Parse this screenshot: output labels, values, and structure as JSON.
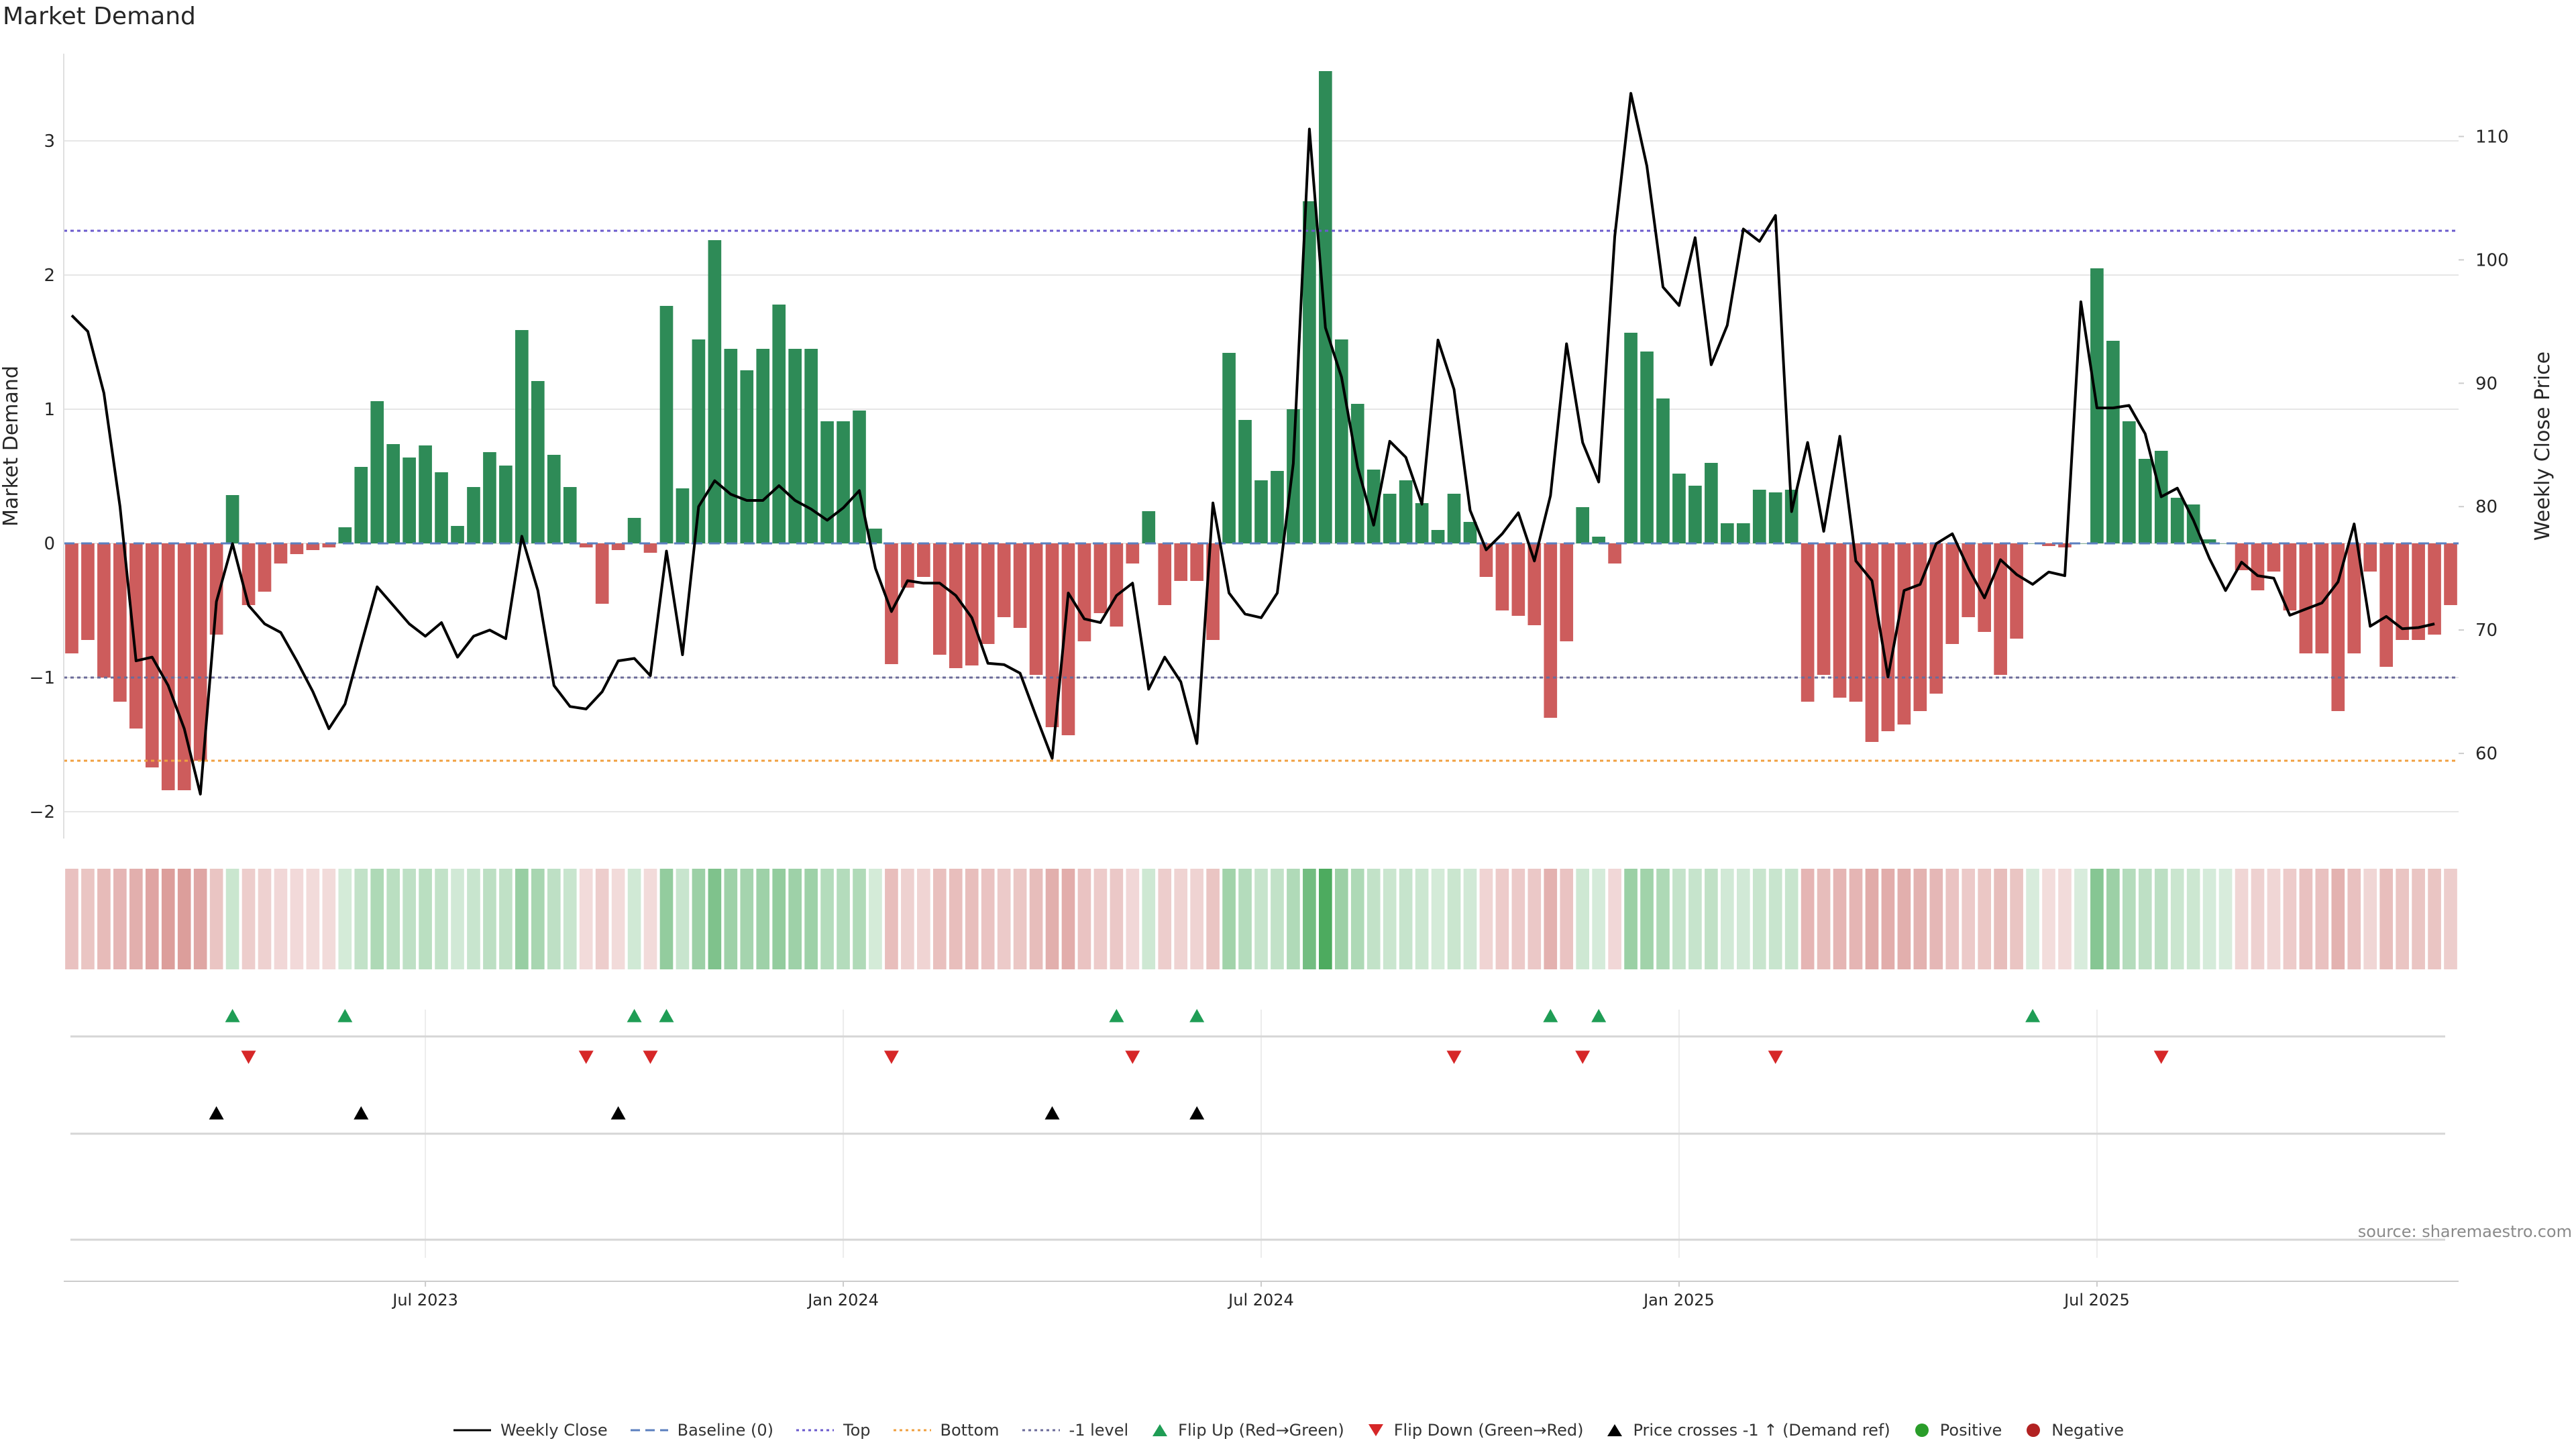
{
  "title": "Market Demand",
  "source": "source: sharemaestro.com",
  "colors": {
    "positive": "#2e8b57",
    "negative": "#cd5c5c",
    "price": "#000000",
    "baseline": "#5b7fbf",
    "top": "#6a5acd",
    "bottom": "#f0a040",
    "minus1": "#6b6b9a",
    "flip_up": "#1f9d55",
    "flip_down": "#d62728",
    "cross": "#000000",
    "legend_positive": "#2a9d2a",
    "legend_negative": "#b22222"
  },
  "chart_data": {
    "type": "bar+line",
    "title": "Market Demand",
    "ylabel_left": "Market Demand",
    "ylabel_right": "Weekly Close Price",
    "left_ticks": [
      3,
      2,
      1,
      0,
      -1,
      -2
    ],
    "left_tick_labels": [
      "3",
      "2",
      "1",
      "0",
      "−1",
      "−2"
    ],
    "ylim_left": [
      -2.2,
      3.75
    ],
    "right_ticks": [
      110,
      100,
      90,
      80,
      70,
      60
    ],
    "right_tick_labels": [
      "110",
      "100",
      "90",
      "80",
      "70",
      "60"
    ],
    "ylim_right": [
      53.1,
      117.8
    ],
    "top_level": 2.33,
    "bottom_level": -1.62,
    "minus1_level": -1.0,
    "x_tick_labels": [
      "Jul 2023",
      "Jan 2024",
      "Jul 2024",
      "Jan 2025",
      "Jul 2025"
    ],
    "x_tick_index": [
      22,
      48,
      74,
      100,
      126
    ],
    "demand": [
      -0.82,
      -0.72,
      -1.0,
      -1.18,
      -1.38,
      -1.67,
      -1.84,
      -1.84,
      -1.62,
      -0.68,
      0.36,
      -0.46,
      -0.36,
      -0.15,
      -0.08,
      -0.05,
      -0.03,
      0.12,
      0.57,
      1.06,
      0.74,
      0.64,
      0.73,
      0.53,
      0.13,
      0.42,
      0.68,
      0.58,
      1.59,
      1.21,
      0.66,
      0.42,
      -0.03,
      -0.45,
      -0.05,
      0.19,
      -0.07,
      1.77,
      0.41,
      1.52,
      2.26,
      1.45,
      1.29,
      1.45,
      1.78,
      1.45,
      1.45,
      0.91,
      0.91,
      0.99,
      0.11,
      -0.9,
      -0.33,
      -0.25,
      -0.83,
      -0.93,
      -0.91,
      -0.75,
      -0.55,
      -0.63,
      -0.98,
      -1.37,
      -1.43,
      -0.73,
      -0.52,
      -0.62,
      -0.15,
      0.24,
      -0.46,
      -0.28,
      -0.28,
      -0.72,
      1.42,
      0.92,
      0.47,
      0.54,
      1.0,
      2.55,
      3.52,
      1.52,
      1.04,
      0.55,
      0.37,
      0.47,
      0.3,
      0.1,
      0.37,
      0.16,
      -0.25,
      -0.5,
      -0.54,
      -0.61,
      -1.3,
      -0.73,
      0.27,
      0.05,
      -0.15,
      1.57,
      1.43,
      1.08,
      0.52,
      0.43,
      0.6,
      0.15,
      0.15,
      0.4,
      0.38,
      0.4,
      -1.18,
      -0.98,
      -1.15,
      -1.18,
      -1.48,
      -1.4,
      -1.35,
      -1.25,
      -1.12,
      -0.75,
      -0.55,
      -0.66,
      -0.98,
      -0.71,
      0.0,
      -0.02,
      -0.03,
      0.0,
      2.05,
      1.51,
      0.91,
      0.63,
      0.69,
      0.34,
      0.29,
      0.03,
      0.0,
      -0.2,
      -0.35,
      -0.21,
      -0.5,
      -0.82,
      -0.82,
      -1.25,
      -0.82,
      -0.21,
      -0.92,
      -0.72,
      -0.72,
      -0.68,
      -0.46
    ],
    "close": [
      95.5,
      94.2,
      89.2,
      80.0,
      67.5,
      67.8,
      65.5,
      62.0,
      56.7,
      72.3,
      77.0,
      72.0,
      70.5,
      69.8,
      67.5,
      65.0,
      62.0,
      64.0,
      68.8,
      73.5,
      72.0,
      70.5,
      69.5,
      70.6,
      67.8,
      69.5,
      70.0,
      69.3,
      77.6,
      73.2,
      65.5,
      63.8,
      63.6,
      65.0,
      67.5,
      67.7,
      66.3,
      76.4,
      68.0,
      80.0,
      82.1,
      81.0,
      80.5,
      80.5,
      81.7,
      80.5,
      79.8,
      78.9,
      79.9,
      81.3,
      75.0,
      71.5,
      74.0,
      73.8,
      73.8,
      72.8,
      71.0,
      67.3,
      67.2,
      66.5,
      63.0,
      59.6,
      73.0,
      70.9,
      70.6,
      72.8,
      73.8,
      65.2,
      67.8,
      65.8,
      60.8,
      80.3,
      73.0,
      71.3,
      71.0,
      73.0,
      83.5,
      110.6,
      94.5,
      90.5,
      83.2,
      78.5,
      85.3,
      84.0,
      80.2,
      93.5,
      89.5,
      79.7,
      76.5,
      77.8,
      79.5,
      75.6,
      80.9,
      93.2,
      85.2,
      82.0,
      101.9,
      113.5,
      107.6,
      97.8,
      96.3,
      101.8,
      91.5,
      94.7,
      102.5,
      101.5,
      103.6,
      79.6,
      85.2,
      78.0,
      85.7,
      75.6,
      74.0,
      66.2,
      73.2,
      73.7,
      77.0,
      77.8,
      75.0,
      72.6,
      75.7,
      74.5,
      73.7,
      74.7,
      74.4,
      96.6,
      88.0,
      88.0,
      88.2,
      85.9,
      80.8,
      81.5,
      78.9,
      75.8,
      73.2,
      75.5,
      74.4,
      74.2,
      71.2,
      71.7,
      72.2,
      73.9,
      78.6,
      70.3,
      71.1,
      70.1,
      70.2,
      70.5
    ]
  },
  "panels": {
    "flip_up_index": [
      10,
      17,
      35,
      37,
      65,
      70,
      92,
      95,
      122
    ],
    "flip_down_index": [
      11,
      32,
      36,
      51,
      66,
      86,
      94,
      106,
      130
    ],
    "cross_up_index": [
      9,
      18,
      34,
      61,
      70
    ]
  },
  "legend": [
    {
      "key": "close",
      "label": "Weekly Close"
    },
    {
      "key": "baseline",
      "label": "Baseline (0)"
    },
    {
      "key": "top",
      "label": "Top"
    },
    {
      "key": "bottom",
      "label": "Bottom"
    },
    {
      "key": "minus1",
      "label": "-1 level"
    },
    {
      "key": "flip_up",
      "label": "Flip Up (Red→Green)"
    },
    {
      "key": "flip_down",
      "label": "Flip Down (Green→Red)"
    },
    {
      "key": "cross",
      "label": "Price crosses -1 ↑ (Demand ref)"
    },
    {
      "key": "positive",
      "label": "Positive"
    },
    {
      "key": "negative",
      "label": "Negative"
    }
  ]
}
